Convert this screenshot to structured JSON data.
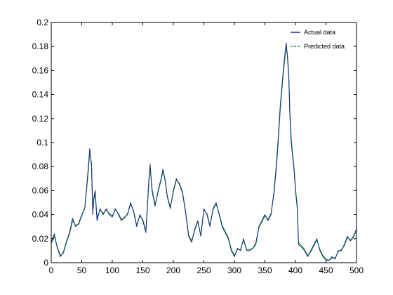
{
  "chart_data": {
    "type": "line",
    "xlim": [
      0,
      500
    ],
    "ylim": [
      0,
      0.2
    ],
    "x_ticks": [
      0,
      50,
      100,
      150,
      200,
      250,
      300,
      350,
      400,
      450,
      500
    ],
    "y_ticks": [
      0,
      0.02,
      0.04,
      0.06,
      0.08,
      0.1,
      0.12,
      0.14,
      0.16,
      0.18,
      0.2
    ],
    "x_tick_labels": [
      "0",
      "50",
      "100",
      "150",
      "200",
      "250",
      "300",
      "350",
      "400",
      "450",
      "500"
    ],
    "y_tick_labels": [
      "0",
      "0.02",
      "0.04",
      "0.06",
      "0.08",
      "0.1",
      "0.12",
      "0.14",
      "0.16",
      "0.18",
      "0.2"
    ],
    "grid": false,
    "legend_position": "top-right",
    "series": [
      {
        "name": "Actual data",
        "color": "#1f2a8a",
        "line_style": "solid",
        "x": [
          0,
          5,
          10,
          15,
          20,
          25,
          30,
          35,
          40,
          45,
          50,
          55,
          60,
          63,
          66,
          68,
          70,
          72,
          75,
          80,
          85,
          90,
          95,
          100,
          105,
          110,
          115,
          120,
          125,
          130,
          135,
          140,
          145,
          150,
          155,
          160,
          162,
          165,
          170,
          175,
          180,
          183,
          186,
          190,
          195,
          200,
          205,
          210,
          215,
          220,
          225,
          230,
          235,
          240,
          245,
          250,
          255,
          260,
          265,
          270,
          275,
          280,
          285,
          290,
          295,
          300,
          305,
          310,
          315,
          320,
          325,
          330,
          335,
          340,
          345,
          350,
          355,
          360,
          365,
          370,
          375,
          380,
          383,
          385,
          387,
          389,
          391,
          393,
          395,
          398,
          400,
          403,
          405,
          410,
          415,
          420,
          425,
          430,
          435,
          440,
          445,
          450,
          455,
          460,
          465,
          470,
          475,
          480,
          485,
          490,
          495,
          500
        ],
        "y": [
          0.017,
          0.024,
          0.012,
          0.005,
          0.009,
          0.018,
          0.025,
          0.037,
          0.03,
          0.033,
          0.04,
          0.045,
          0.075,
          0.095,
          0.08,
          0.04,
          0.055,
          0.06,
          0.035,
          0.045,
          0.04,
          0.045,
          0.04,
          0.038,
          0.045,
          0.04,
          0.035,
          0.038,
          0.04,
          0.05,
          0.042,
          0.03,
          0.04,
          0.035,
          0.025,
          0.07,
          0.082,
          0.06,
          0.047,
          0.06,
          0.07,
          0.078,
          0.07,
          0.055,
          0.045,
          0.06,
          0.07,
          0.065,
          0.058,
          0.042,
          0.022,
          0.017,
          0.028,
          0.035,
          0.022,
          0.045,
          0.04,
          0.03,
          0.045,
          0.05,
          0.04,
          0.03,
          0.025,
          0.02,
          0.01,
          0.005,
          0.012,
          0.01,
          0.02,
          0.01,
          0.01,
          0.012,
          0.016,
          0.03,
          0.035,
          0.04,
          0.035,
          0.04,
          0.06,
          0.09,
          0.13,
          0.16,
          0.175,
          0.183,
          0.17,
          0.155,
          0.12,
          0.1,
          0.09,
          0.075,
          0.06,
          0.045,
          0.015,
          0.013,
          0.01,
          0.005,
          0.01,
          0.015,
          0.02,
          0.01,
          0.005,
          0.002,
          0.002,
          0.005,
          0.003,
          0.01,
          0.01,
          0.015,
          0.022,
          0.018,
          0.022,
          0.028
        ]
      },
      {
        "name": "Predicted data",
        "color": "#1f9a3a",
        "line_style": "dashed",
        "x": [
          0,
          5,
          10,
          15,
          20,
          25,
          30,
          35,
          40,
          45,
          50,
          55,
          60,
          63,
          66,
          68,
          70,
          72,
          75,
          80,
          85,
          90,
          95,
          100,
          105,
          110,
          115,
          120,
          125,
          130,
          135,
          140,
          145,
          150,
          155,
          160,
          162,
          165,
          170,
          175,
          180,
          183,
          186,
          190,
          195,
          200,
          205,
          210,
          215,
          220,
          225,
          230,
          235,
          240,
          245,
          250,
          255,
          260,
          265,
          270,
          275,
          280,
          285,
          290,
          295,
          300,
          305,
          310,
          315,
          320,
          325,
          330,
          335,
          340,
          345,
          350,
          355,
          360,
          365,
          370,
          375,
          380,
          383,
          385,
          387,
          389,
          391,
          393,
          395,
          398,
          400,
          403,
          405,
          410,
          415,
          420,
          425,
          430,
          435,
          440,
          445,
          450,
          455,
          460,
          465,
          470,
          475,
          480,
          485,
          490,
          495,
          500
        ],
        "y": [
          0.016,
          0.022,
          0.013,
          0.006,
          0.008,
          0.017,
          0.024,
          0.035,
          0.031,
          0.032,
          0.039,
          0.046,
          0.072,
          0.092,
          0.083,
          0.043,
          0.053,
          0.058,
          0.037,
          0.044,
          0.041,
          0.044,
          0.041,
          0.039,
          0.044,
          0.041,
          0.036,
          0.037,
          0.041,
          0.049,
          0.043,
          0.031,
          0.039,
          0.036,
          0.026,
          0.068,
          0.08,
          0.062,
          0.048,
          0.059,
          0.069,
          0.076,
          0.071,
          0.056,
          0.046,
          0.059,
          0.069,
          0.066,
          0.059,
          0.043,
          0.023,
          0.018,
          0.027,
          0.034,
          0.023,
          0.044,
          0.041,
          0.031,
          0.044,
          0.049,
          0.041,
          0.031,
          0.026,
          0.021,
          0.011,
          0.006,
          0.011,
          0.011,
          0.019,
          0.011,
          0.011,
          0.012,
          0.015,
          0.029,
          0.034,
          0.039,
          0.036,
          0.041,
          0.058,
          0.087,
          0.127,
          0.157,
          0.172,
          0.18,
          0.172,
          0.157,
          0.124,
          0.104,
          0.092,
          0.077,
          0.062,
          0.047,
          0.017,
          0.014,
          0.011,
          0.006,
          0.009,
          0.014,
          0.019,
          0.011,
          0.006,
          0.003,
          0.002,
          0.004,
          0.004,
          0.009,
          0.011,
          0.014,
          0.021,
          0.019,
          0.021,
          0.027
        ]
      }
    ]
  }
}
